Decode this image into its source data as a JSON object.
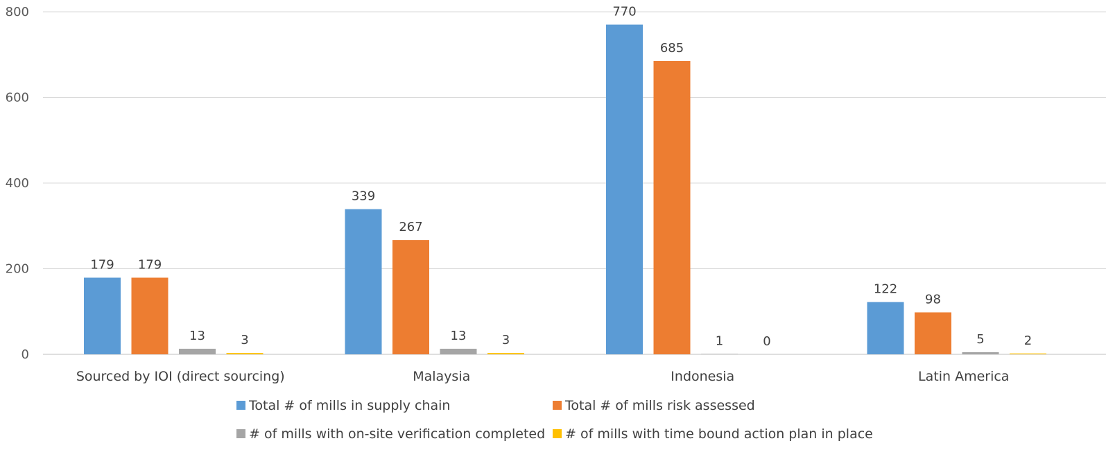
{
  "chart_data": {
    "type": "bar",
    "title": "",
    "xlabel": "",
    "ylabel": "",
    "ylim": [
      0,
      800
    ],
    "yticks": [
      0,
      200,
      400,
      600,
      800
    ],
    "grid": true,
    "legend_position": "bottom",
    "categories": [
      "Sourced by IOI (direct sourcing)",
      "Malaysia",
      "Indonesia",
      "Latin America"
    ],
    "series": [
      {
        "name": "Total # of mills in supply chain",
        "color": "#5B9BD5",
        "values": [
          179,
          339,
          770,
          122
        ]
      },
      {
        "name": "Total # of mills risk assessed",
        "color": "#ED7D31",
        "values": [
          179,
          267,
          685,
          98
        ]
      },
      {
        "name": "# of mills with on-site verification completed",
        "color": "#A5A5A5",
        "values": [
          13,
          13,
          1,
          5
        ]
      },
      {
        "name": "# of mills with time bound action plan in place",
        "color": "#FFC000",
        "values": [
          3,
          3,
          0,
          2
        ]
      }
    ]
  }
}
